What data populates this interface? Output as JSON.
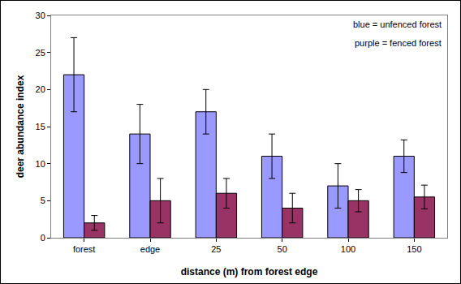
{
  "chart_data": {
    "type": "bar",
    "x_label": "distance (m) from forest edge",
    "y_label": "deer abundance index",
    "annotations": [
      "blue = unfenced forest",
      "purple = fenced forest"
    ],
    "categories": [
      "forest",
      "edge",
      "25",
      "50",
      "100",
      "150"
    ],
    "series": [
      {
        "color": "#9999ff",
        "values": [
          22,
          14,
          17,
          11,
          7,
          11
        ],
        "errors": [
          5,
          4,
          3,
          3,
          3,
          2.2
        ]
      },
      {
        "color": "#993366",
        "values": [
          2,
          5,
          6,
          4,
          5,
          5.5
        ],
        "errors": [
          1,
          3,
          2,
          2,
          1.5,
          1.6
        ]
      }
    ],
    "ylim": [
      0,
      30
    ],
    "yticks": [
      0,
      5,
      10,
      15,
      20,
      25,
      30
    ],
    "grid": false
  }
}
